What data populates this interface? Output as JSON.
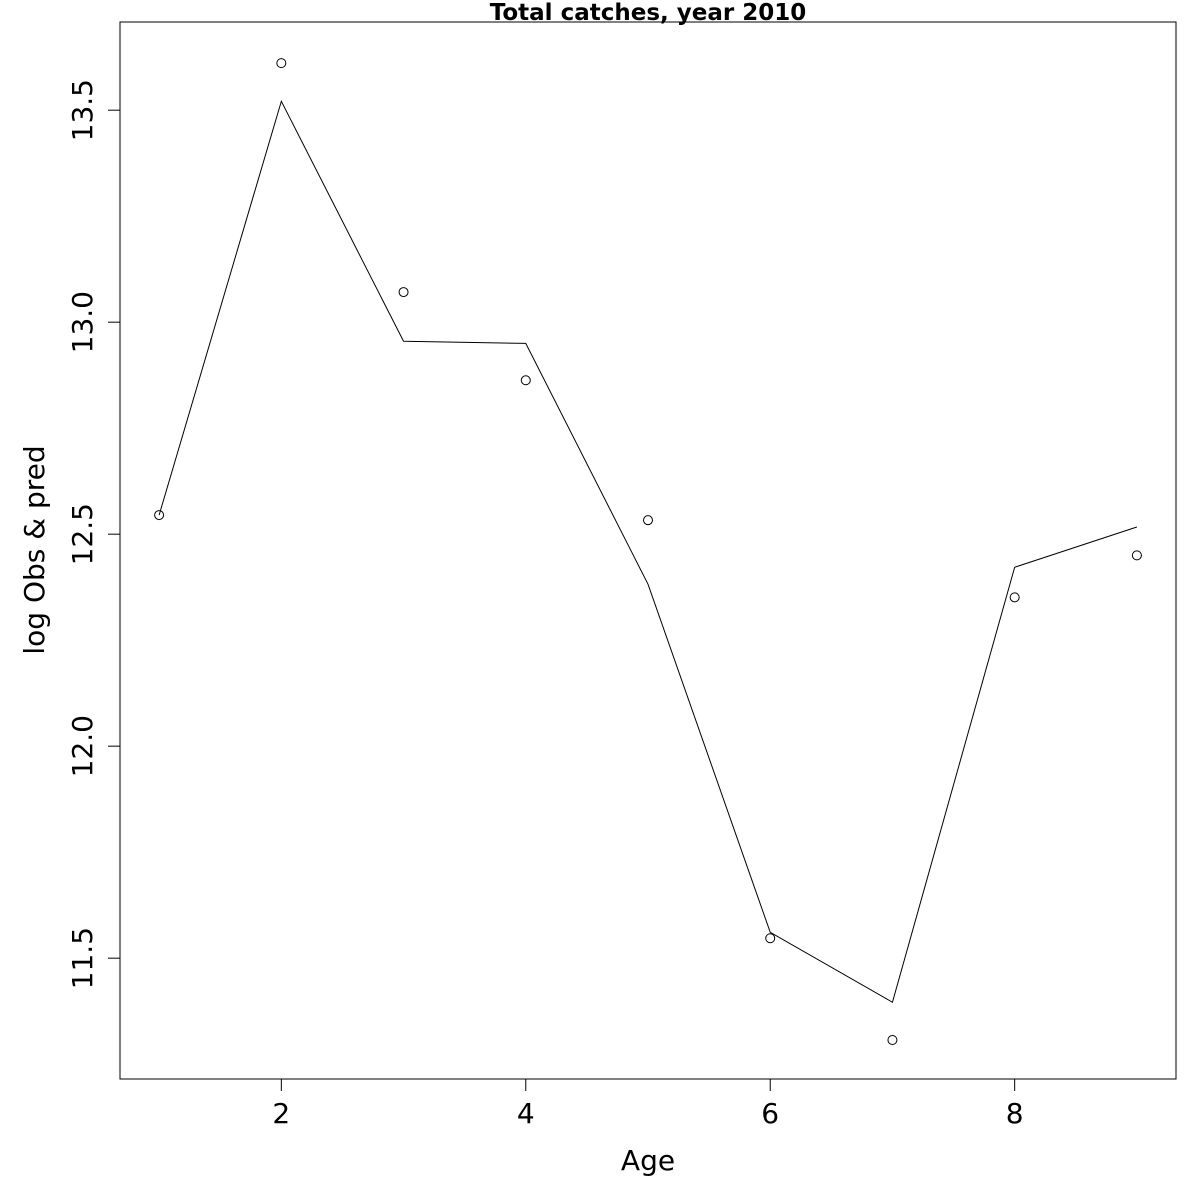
{
  "chart_data": {
    "type": "line",
    "title": "Total catches, year 2010",
    "x_label": "Age",
    "y_label": "log Obs & pred",
    "x": [
      1,
      2,
      3,
      4,
      5,
      6,
      7,
      8,
      9
    ],
    "series": [
      {
        "style": "points",
        "color": "#000000",
        "values": [
          12.545,
          13.611,
          13.071,
          12.863,
          12.533,
          11.547,
          11.307,
          12.351,
          12.45
        ]
      },
      {
        "style": "line",
        "color": "#000000",
        "values": [
          12.545,
          13.521,
          12.955,
          12.95,
          12.382,
          11.561,
          11.396,
          12.422,
          12.517
        ]
      }
    ],
    "xlim": [
      0.68,
      9.32
    ],
    "ylim": [
      11.215,
      13.708
    ],
    "xticks": [
      2,
      4,
      6,
      8
    ],
    "yticks": [
      11.5,
      {
        "value": 12,
        "label": "12.0"
      },
      12.5,
      {
        "value": 13,
        "label": "13.0"
      },
      13.5
    ]
  }
}
